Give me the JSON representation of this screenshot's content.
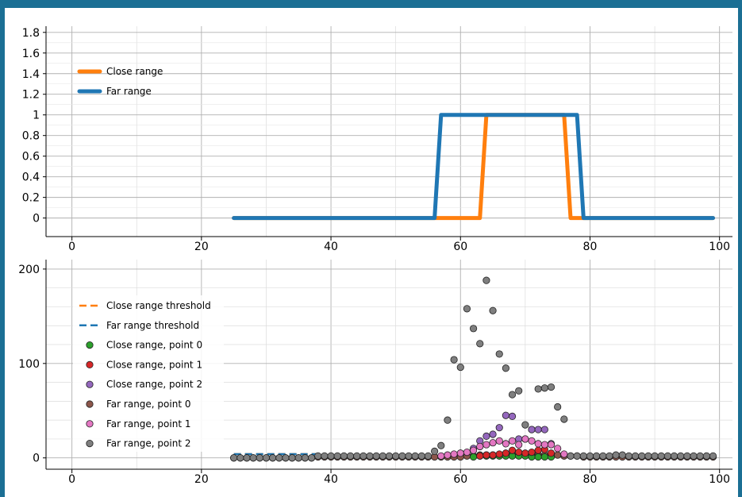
{
  "colors": {
    "close": "#ff7f0e",
    "far": "#1f77b4",
    "p_close0": "#2ca02c",
    "p_close1": "#d62728",
    "p_close2": "#9467bd",
    "p_far0": "#8c564b",
    "p_far1": "#e377c2",
    "p_far2": "#7f7f7f",
    "background": "#1b6f94"
  },
  "chart_data": [
    {
      "type": "line",
      "grid": true,
      "legend_position": "top-left",
      "xlim": [
        -4,
        102
      ],
      "ylim": [
        -0.18,
        1.86
      ],
      "x_ticks": [
        0,
        20,
        40,
        60,
        80,
        100
      ],
      "x_tick_labels": [
        "0",
        "20",
        "40",
        "60",
        "80",
        "100"
      ],
      "y_ticks": [
        0,
        0.2,
        0.4,
        0.6,
        0.8,
        1,
        1.2,
        1.4,
        1.6,
        1.8
      ],
      "y_tick_labels": [
        "0",
        "0.2",
        "0.4",
        "0.6",
        "0.8",
        "1",
        "1.2",
        "1.4",
        "1.6",
        "1.8"
      ],
      "series": [
        {
          "name": "Close range",
          "color_key": "close",
          "x": [
            25,
            63,
            64,
            76,
            77,
            99
          ],
          "y": [
            0,
            0,
            1,
            1,
            0,
            0
          ]
        },
        {
          "name": "Far range",
          "color_key": "far",
          "x": [
            25,
            56,
            57,
            78,
            79,
            99
          ],
          "y": [
            0,
            0,
            1,
            1,
            0,
            0
          ]
        }
      ]
    },
    {
      "type": "scatter",
      "grid": true,
      "legend_position": "top-left",
      "xlim": [
        -4,
        102
      ],
      "ylim": [
        -12,
        210
      ],
      "x_ticks": [
        0,
        20,
        40,
        60,
        80,
        100
      ],
      "x_tick_labels": [
        "0",
        "20",
        "40",
        "60",
        "80",
        "100"
      ],
      "y_ticks": [
        0,
        100,
        200
      ],
      "y_tick_labels": [
        "0",
        "100",
        "200"
      ],
      "y_minor_ticks": [
        20,
        40,
        60,
        80,
        120,
        140,
        160,
        180
      ],
      "thresholds": [
        {
          "name": "Close range threshold",
          "color_key": "close",
          "x": [
            25,
            38
          ],
          "y": [
            4,
            4
          ]
        },
        {
          "name": "Far range threshold",
          "color_key": "far",
          "x": [
            25,
            38
          ],
          "y": [
            4,
            4
          ]
        }
      ],
      "series": [
        {
          "name": "Close range, point 0",
          "color_key": "p_close0",
          "x": [
            62,
            63,
            64,
            65,
            66,
            67,
            68,
            69,
            70,
            71,
            72,
            73,
            74
          ],
          "y": [
            1,
            2,
            2,
            2,
            2,
            2,
            2,
            2,
            2,
            1,
            1,
            1,
            1
          ]
        },
        {
          "name": "Close range, point 1",
          "color_key": "p_close1",
          "x": [
            63,
            64,
            65,
            66,
            67,
            68,
            69,
            70,
            71,
            72,
            73,
            74
          ],
          "y": [
            2,
            3,
            3,
            4,
            5,
            8,
            6,
            5,
            6,
            8,
            9,
            5
          ]
        },
        {
          "name": "Close range, point 2",
          "color_key": "p_close2",
          "x": [
            62,
            63,
            64,
            65,
            66,
            67,
            68,
            69,
            70,
            71,
            72,
            73,
            74
          ],
          "y": [
            10,
            18,
            23,
            25,
            32,
            45,
            44,
            20,
            20,
            30,
            30,
            30,
            15
          ]
        },
        {
          "name": "Far range, point 0",
          "color_key": "p_far0",
          "x": [
            25,
            26,
            27,
            28,
            29,
            30,
            31,
            32,
            33,
            34,
            35,
            36,
            37,
            38,
            39,
            40,
            41,
            42,
            43,
            44,
            45,
            46,
            47,
            48,
            49,
            50,
            51,
            52,
            53,
            54,
            55,
            56,
            57,
            58,
            59,
            60,
            61,
            62,
            63,
            64,
            65,
            66,
            67,
            68,
            69,
            70,
            71,
            72,
            73,
            74,
            75,
            76,
            77,
            78,
            79,
            80,
            81,
            82,
            83,
            84,
            85,
            86,
            87,
            88,
            89,
            90,
            91,
            92,
            93,
            94,
            95,
            96,
            97,
            98,
            99
          ],
          "y": [
            0,
            0,
            0,
            0,
            0,
            0,
            0,
            0,
            0,
            0,
            0,
            0,
            0,
            1,
            1,
            1,
            1,
            1,
            1,
            1,
            1,
            1,
            1,
            1,
            1,
            1,
            1,
            1,
            1,
            1,
            1,
            1,
            1,
            1,
            1,
            1,
            2,
            2,
            3,
            3,
            3,
            3,
            3,
            3,
            3,
            3,
            3,
            3,
            3,
            3,
            3,
            2,
            2,
            2,
            1,
            1,
            1,
            1,
            1,
            1,
            1,
            1,
            1,
            1,
            1,
            1,
            1,
            1,
            1,
            1,
            1,
            1,
            1,
            1,
            1
          ]
        },
        {
          "name": "Far range, point 1",
          "color_key": "p_far1",
          "x": [
            57,
            58,
            59,
            60,
            61,
            62,
            63,
            64,
            65,
            66,
            67,
            68,
            69,
            70,
            71,
            72,
            73,
            74,
            75,
            76
          ],
          "y": [
            2,
            3,
            4,
            5,
            6,
            8,
            12,
            14,
            16,
            18,
            15,
            18,
            14,
            20,
            18,
            15,
            14,
            14,
            10,
            4
          ]
        },
        {
          "name": "Far range, point 2",
          "color_key": "p_far2",
          "x": [
            25,
            26,
            27,
            28,
            29,
            30,
            31,
            32,
            33,
            34,
            35,
            36,
            37,
            38,
            39,
            40,
            41,
            42,
            43,
            44,
            45,
            46,
            47,
            48,
            49,
            50,
            51,
            52,
            53,
            54,
            55,
            56,
            57,
            58,
            59,
            60,
            61,
            62,
            63,
            64,
            65,
            66,
            67,
            68,
            69,
            70,
            71,
            72,
            73,
            74,
            75,
            76,
            77,
            78,
            79,
            80,
            81,
            82,
            83,
            84,
            85,
            86,
            87,
            88,
            89,
            90,
            91,
            92,
            93,
            94,
            95,
            96,
            97,
            98,
            99
          ],
          "y": [
            0,
            0,
            0,
            0,
            0,
            0,
            0,
            0,
            0,
            0,
            0,
            0,
            0,
            2,
            2,
            2,
            2,
            2,
            2,
            2,
            2,
            2,
            2,
            2,
            2,
            2,
            2,
            2,
            2,
            2,
            2,
            7,
            13,
            40,
            104,
            96,
            158,
            137,
            121,
            188,
            156,
            110,
            95,
            67,
            71,
            35,
            30,
            73,
            74,
            75,
            54,
            41,
            2,
            2,
            2,
            2,
            2,
            2,
            2,
            3,
            3,
            2,
            2,
            2,
            2,
            2,
            2,
            2,
            2,
            2,
            2,
            2,
            2,
            2,
            2
          ]
        }
      ]
    }
  ]
}
